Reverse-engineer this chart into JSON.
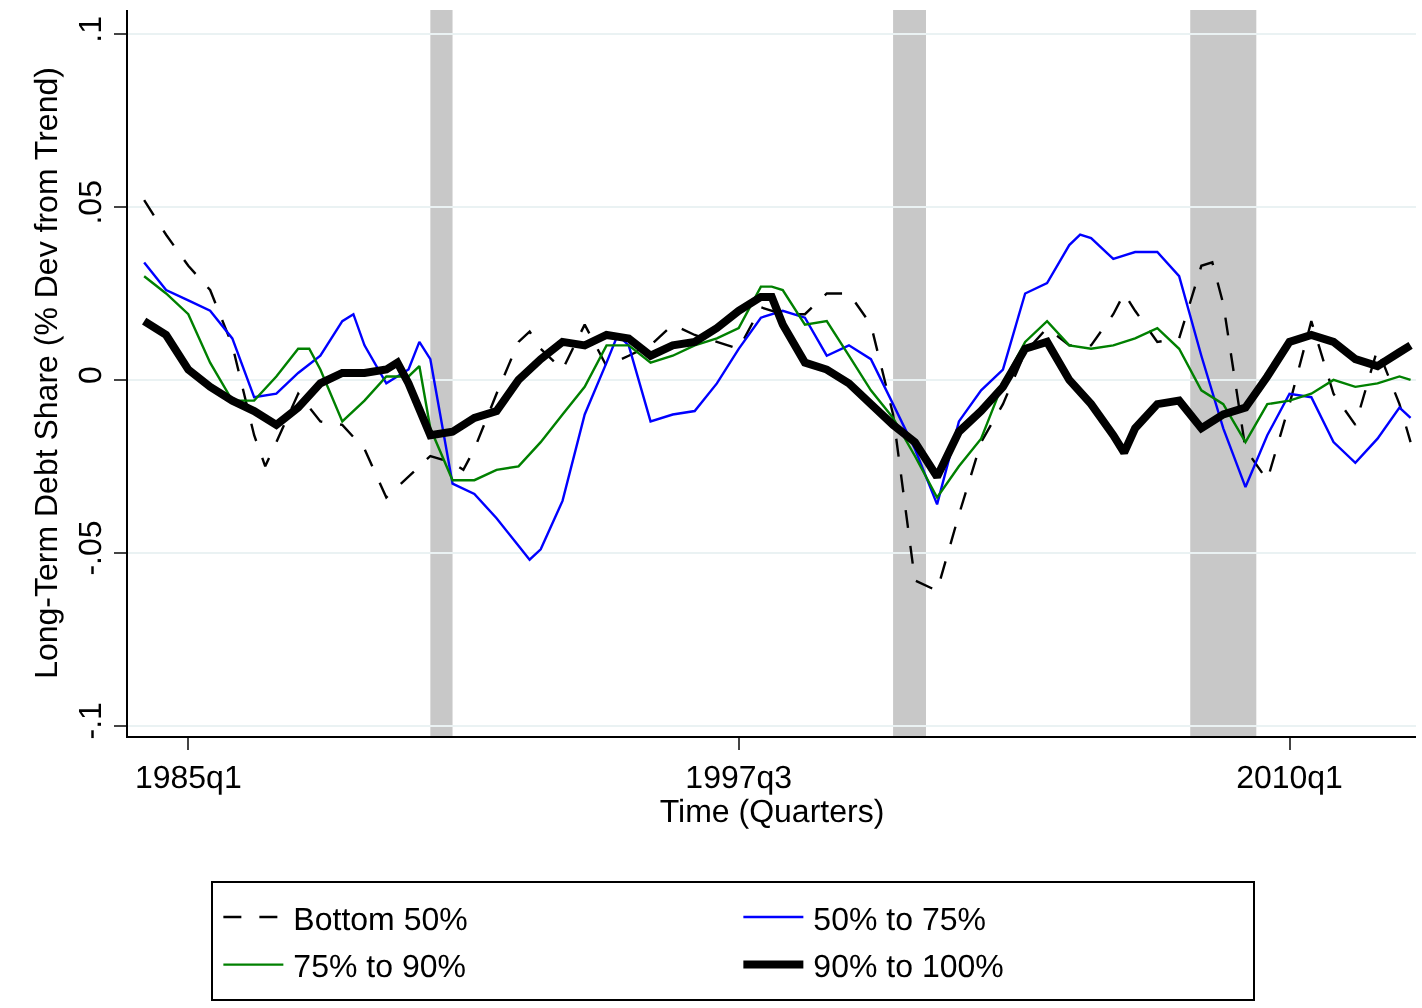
{
  "chart_data": {
    "type": "line",
    "xlabel": "Time (Quarters)",
    "ylabel": "Long-Term Debt Share (% Dev from Trend)",
    "xlim": [
      "1983-08-20",
      "2012-11-15"
    ],
    "ylim": [
      -0.103,
      0.107
    ],
    "xticks": [
      {
        "value": "1985-01",
        "label": "1985q1"
      },
      {
        "value": "1997-07",
        "label": "1997q3"
      },
      {
        "value": "2010-01",
        "label": "2010q1"
      }
    ],
    "yticks": [
      {
        "value": -0.1,
        "label": "-.1"
      },
      {
        "value": -0.05,
        "label": "-.05"
      },
      0,
      {
        "value": 0.05,
        "label": ".05"
      },
      {
        "value": 0.1,
        "label": ".1"
      }
    ],
    "grid": "y",
    "legend": "bottom",
    "marker": "none",
    "bands": [
      {
        "axis": "x",
        "from": "1990-07",
        "to": "1991-01",
        "color": "#c8c8c8"
      },
      {
        "axis": "x",
        "from": "2001-01",
        "to": "2001-10",
        "color": "#c8c8c8"
      },
      {
        "axis": "x",
        "from": "2007-10",
        "to": "2009-04",
        "color": "#c8c8c8"
      }
    ],
    "series": [
      {
        "name": "Bottom 50%",
        "color": "#000000",
        "line_style": "dashed",
        "x": [
          "1984-01",
          "1984-07",
          "1985-01",
          "1985-07",
          "1986-01",
          "1986-07",
          "1986-10",
          "1987-01",
          "1987-07",
          "1988-01",
          "1988-07",
          "1989-01",
          "1989-07",
          "1990-01",
          "1990-07",
          "1991-01",
          "1991-04",
          "1991-07",
          "1992-01",
          "1992-07",
          "1992-10",
          "1993-01",
          "1993-07",
          "1994-01",
          "1994-07",
          "1995-01",
          "1995-07",
          "1996-01",
          "1996-07",
          "1997-01",
          "1997-07",
          "1998-01",
          "1998-07",
          "1999-01",
          "1999-07",
          "2000-01",
          "2000-07",
          "2001-01",
          "2001-07",
          "2002-01",
          "2002-07",
          "2003-01",
          "2003-07",
          "2004-01",
          "2004-07",
          "2005-01",
          "2005-07",
          "2006-01",
          "2006-04",
          "2006-07",
          "2007-01",
          "2007-07",
          "2008-01",
          "2008-04",
          "2008-07",
          "2009-01",
          "2009-07",
          "2010-01",
          "2010-07",
          "2011-01",
          "2011-07",
          "2012-01",
          "2012-07",
          "2012-10"
        ],
        "values": [
          0.052,
          0.042,
          0.033,
          0.026,
          0.01,
          -0.016,
          -0.025,
          -0.018,
          -0.004,
          -0.012,
          -0.013,
          -0.02,
          -0.034,
          -0.028,
          -0.022,
          -0.024,
          -0.026,
          -0.02,
          -0.004,
          0.011,
          0.014,
          0.009,
          0.003,
          0.016,
          0.004,
          0.007,
          0.01,
          0.016,
          0.013,
          0.011,
          0.009,
          0.021,
          0.019,
          0.019,
          0.025,
          0.025,
          0.016,
          -0.01,
          -0.058,
          -0.061,
          -0.039,
          -0.018,
          -0.007,
          0.008,
          0.015,
          0.01,
          0.01,
          0.019,
          0.025,
          0.02,
          0.011,
          0.012,
          0.033,
          0.034,
          0.022,
          -0.02,
          -0.029,
          -0.007,
          0.017,
          -0.004,
          -0.013,
          0.009,
          -0.007,
          -0.018
        ]
      },
      {
        "name": "50% to 75%",
        "color": "#0000ff",
        "x": [
          "1984-01",
          "1984-07",
          "1985-01",
          "1985-07",
          "1986-01",
          "1986-07",
          "1987-01",
          "1987-07",
          "1988-01",
          "1988-07",
          "1988-10",
          "1989-01",
          "1989-07",
          "1990-01",
          "1990-04",
          "1990-07",
          "1991-01",
          "1991-07",
          "1992-01",
          "1992-07",
          "1992-10",
          "1993-01",
          "1993-07",
          "1994-01",
          "1994-07",
          "1994-10",
          "1995-01",
          "1995-07",
          "1996-01",
          "1996-07",
          "1997-01",
          "1997-07",
          "1998-01",
          "1998-07",
          "1999-01",
          "1999-07",
          "2000-01",
          "2000-07",
          "2001-01",
          "2001-07",
          "2002-01",
          "2002-07",
          "2003-01",
          "2003-07",
          "2004-01",
          "2004-07",
          "2005-01",
          "2005-04",
          "2005-07",
          "2006-01",
          "2006-07",
          "2007-01",
          "2007-07",
          "2008-01",
          "2008-07",
          "2009-01",
          "2009-07",
          "2010-01",
          "2010-07",
          "2011-01",
          "2011-07",
          "2012-01",
          "2012-07",
          "2012-10"
        ],
        "values": [
          0.034,
          0.026,
          0.023,
          0.02,
          0.012,
          -0.005,
          -0.004,
          0.002,
          0.007,
          0.017,
          0.019,
          0.01,
          -0.001,
          0.003,
          0.011,
          0.006,
          -0.03,
          -0.033,
          -0.04,
          -0.048,
          -0.052,
          -0.049,
          -0.035,
          -0.01,
          0.005,
          0.013,
          0.01,
          -0.012,
          -0.01,
          -0.009,
          -0.001,
          0.009,
          0.018,
          0.02,
          0.018,
          0.007,
          0.01,
          0.006,
          -0.007,
          -0.02,
          -0.036,
          -0.012,
          -0.003,
          0.003,
          0.025,
          0.028,
          0.039,
          0.042,
          0.041,
          0.035,
          0.037,
          0.037,
          0.03,
          0.007,
          -0.014,
          -0.031,
          -0.016,
          -0.004,
          -0.005,
          -0.018,
          -0.024,
          -0.017,
          -0.008,
          -0.011
        ]
      },
      {
        "name": "75% to 90%",
        "color": "#008000",
        "x": [
          "1984-01",
          "1984-07",
          "1985-01",
          "1985-07",
          "1986-01",
          "1986-07",
          "1987-01",
          "1987-07",
          "1987-10",
          "1988-01",
          "1988-07",
          "1989-01",
          "1989-07",
          "1990-01",
          "1990-04",
          "1990-07",
          "1991-01",
          "1991-07",
          "1992-01",
          "1992-07",
          "1993-01",
          "1993-07",
          "1994-01",
          "1994-07",
          "1995-01",
          "1995-07",
          "1996-01",
          "1996-07",
          "1997-01",
          "1997-07",
          "1998-01",
          "1998-04",
          "1998-07",
          "1999-01",
          "1999-07",
          "2000-01",
          "2000-07",
          "2001-01",
          "2001-07",
          "2002-01",
          "2002-07",
          "2003-01",
          "2003-07",
          "2004-01",
          "2004-07",
          "2005-01",
          "2005-07",
          "2006-01",
          "2006-07",
          "2007-01",
          "2007-07",
          "2008-01",
          "2008-07",
          "2009-01",
          "2009-07",
          "2010-01",
          "2010-07",
          "2011-01",
          "2011-07",
          "2012-01",
          "2012-07",
          "2012-10"
        ],
        "values": [
          0.03,
          0.025,
          0.019,
          0.005,
          -0.006,
          -0.006,
          0.001,
          0.009,
          0.009,
          0.003,
          -0.012,
          -0.006,
          0.001,
          0.001,
          0.004,
          -0.014,
          -0.029,
          -0.029,
          -0.026,
          -0.025,
          -0.018,
          -0.01,
          -0.002,
          0.01,
          0.01,
          0.005,
          0.007,
          0.01,
          0.012,
          0.015,
          0.027,
          0.027,
          0.026,
          0.016,
          0.017,
          0.007,
          -0.003,
          -0.011,
          -0.022,
          -0.034,
          -0.025,
          -0.017,
          -0.001,
          0.011,
          0.017,
          0.01,
          0.009,
          0.01,
          0.012,
          0.015,
          0.009,
          -0.003,
          -0.007,
          -0.018,
          -0.007,
          -0.006,
          -0.004,
          0.0,
          -0.002,
          -0.001,
          0.001,
          0.0
        ]
      },
      {
        "name": "90% to 100%",
        "color": "#000000",
        "x": [
          "1984-01",
          "1984-07",
          "1985-01",
          "1985-07",
          "1986-01",
          "1986-07",
          "1987-01",
          "1987-07",
          "1988-01",
          "1988-07",
          "1989-01",
          "1989-07",
          "1989-10",
          "1990-01",
          "1990-07",
          "1991-01",
          "1991-07",
          "1992-01",
          "1992-07",
          "1993-01",
          "1993-07",
          "1994-01",
          "1994-07",
          "1995-01",
          "1995-07",
          "1996-01",
          "1996-07",
          "1997-01",
          "1997-07",
          "1998-01",
          "1998-04",
          "1998-07",
          "1999-01",
          "1999-07",
          "2000-01",
          "2000-07",
          "2001-01",
          "2001-07",
          "2002-01",
          "2002-07",
          "2003-01",
          "2003-07",
          "2004-01",
          "2004-07",
          "2005-01",
          "2005-07",
          "2006-01",
          "2006-04",
          "2006-07",
          "2007-01",
          "2007-07",
          "2008-01",
          "2008-07",
          "2009-01",
          "2009-07",
          "2010-01",
          "2010-07",
          "2011-01",
          "2011-07",
          "2012-01",
          "2012-07",
          "2012-10"
        ],
        "values": [
          0.017,
          0.013,
          0.003,
          -0.002,
          -0.006,
          -0.009,
          -0.013,
          -0.008,
          -0.001,
          0.002,
          0.002,
          0.003,
          0.005,
          -0.001,
          -0.016,
          -0.015,
          -0.011,
          -0.009,
          0.0,
          0.006,
          0.011,
          0.01,
          0.013,
          0.012,
          0.007,
          0.01,
          0.011,
          0.015,
          0.02,
          0.024,
          0.024,
          0.016,
          0.005,
          0.003,
          -0.001,
          -0.007,
          -0.013,
          -0.018,
          -0.028,
          -0.015,
          -0.009,
          -0.002,
          0.009,
          0.011,
          0.0,
          -0.007,
          -0.016,
          -0.021,
          -0.014,
          -0.007,
          -0.006,
          -0.014,
          -0.01,
          -0.008,
          0.001,
          0.011,
          0.013,
          0.011,
          0.006,
          0.004,
          0.008,
          0.01
        ]
      }
    ]
  }
}
